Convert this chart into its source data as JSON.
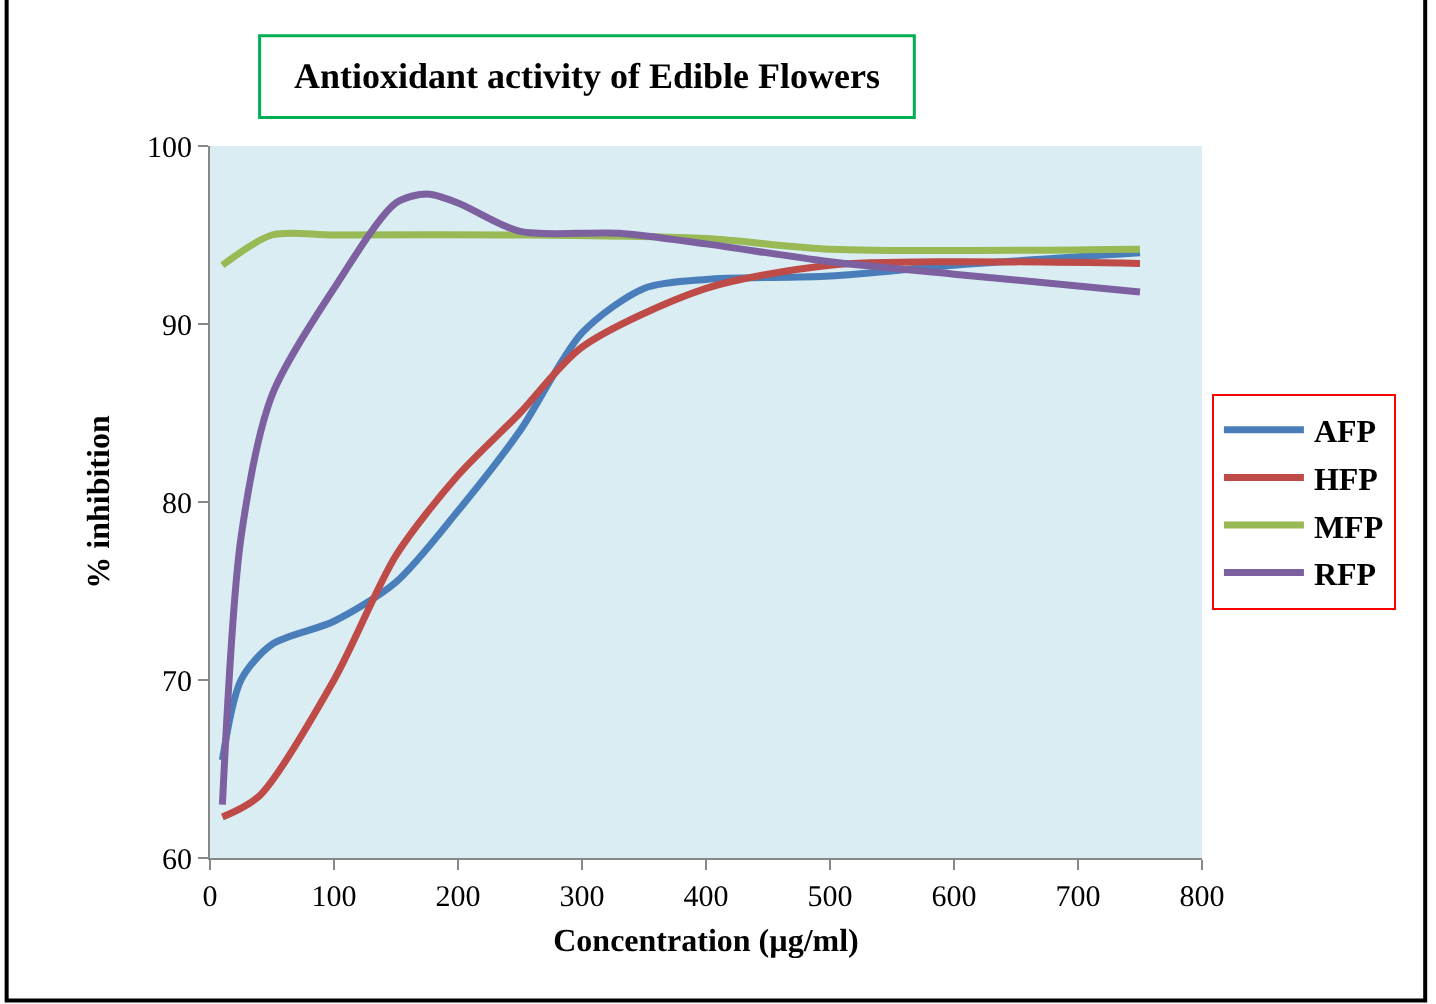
{
  "chart_data": {
    "type": "line",
    "title": "Antioxidant activity of Edible Flowers",
    "xlabel": "Concentration (µg/ml)",
    "ylabel": "% inhibition",
    "xlim": [
      0,
      800
    ],
    "xticks": [
      0,
      100,
      200,
      300,
      400,
      500,
      600,
      700,
      800
    ],
    "ylim": [
      60,
      100
    ],
    "yticks": [
      60,
      70,
      80,
      90,
      100
    ],
    "grid": false,
    "legend": "right",
    "marker": "none",
    "line_style": "solid",
    "series": [
      {
        "name": "AFP",
        "color": "#4a7ebb",
        "x": [
          10,
          25,
          50,
          100,
          150,
          200,
          250,
          300,
          350,
          400,
          500,
          600,
          750
        ],
        "values": [
          65.5,
          70,
          72,
          73.3,
          75.5,
          79.5,
          84,
          89.5,
          92,
          92.5,
          92.7,
          93.3,
          94
        ]
      },
      {
        "name": "HFP",
        "color": "#be4b48",
        "x": [
          10,
          40,
          100,
          150,
          200,
          250,
          300,
          400,
          500,
          600,
          750
        ],
        "values": [
          62.3,
          63.5,
          70,
          77,
          81.5,
          85,
          88.7,
          92,
          93.3,
          93.5,
          93.4
        ]
      },
      {
        "name": "MFP",
        "color": "#98b954",
        "x": [
          10,
          50,
          100,
          250,
          400,
          500,
          750
        ],
        "values": [
          93.3,
          95,
          95,
          95,
          94.8,
          94.2,
          94.2
        ]
      },
      {
        "name": "RFP",
        "color": "#7d60a0",
        "x": [
          10,
          25,
          50,
          100,
          150,
          175,
          200,
          250,
          330,
          400,
          500,
          600,
          750
        ],
        "values": [
          63,
          78,
          86,
          92,
          96.8,
          97.3,
          96.8,
          95.2,
          95.1,
          94.5,
          93.5,
          92.8,
          91.8
        ]
      }
    ]
  }
}
